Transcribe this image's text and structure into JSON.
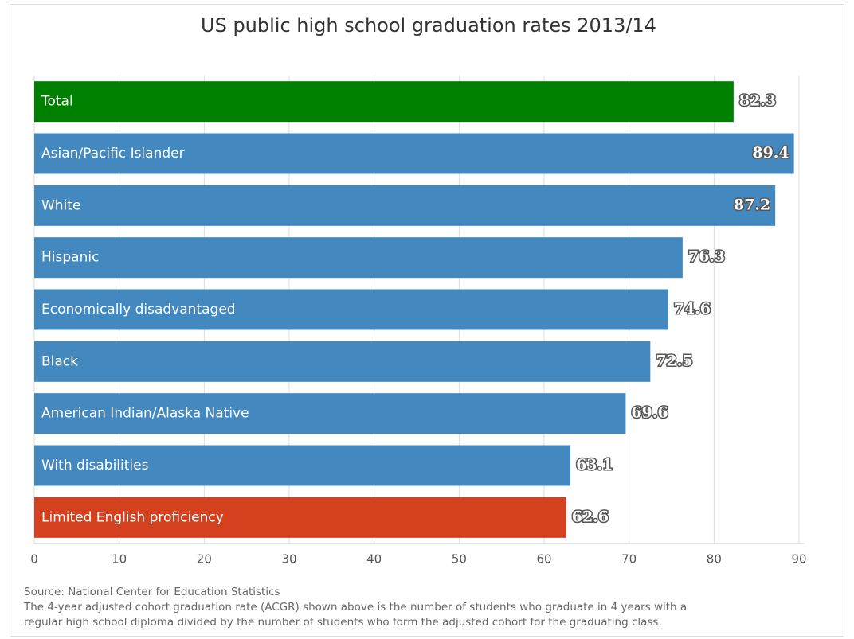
{
  "chart_data": {
    "type": "bar",
    "orientation": "horizontal",
    "title": "US public high school graduation rates 2013/14",
    "categories": [
      "Total",
      "Asian/Pacific Islander",
      "White",
      "Hispanic",
      "Economically disadvantaged",
      "Black",
      "American Indian/Alaska Native",
      "With disabilities",
      "Limited English proficiency"
    ],
    "values": [
      82.3,
      89.4,
      87.2,
      76.3,
      74.6,
      72.5,
      69.6,
      63.1,
      62.6
    ],
    "colors": [
      "#008000",
      "#4389bf",
      "#4389bf",
      "#4389bf",
      "#4389bf",
      "#4389bf",
      "#4389bf",
      "#4389bf",
      "#d5401f"
    ],
    "xlim": [
      0,
      90
    ],
    "xticks": [
      0,
      10,
      20,
      30,
      40,
      50,
      60,
      70,
      80,
      90
    ],
    "grid": true,
    "source": "Source: National Center for Education Statistics",
    "notes": [
      "The 4-year adjusted cohort graduation rate (ACGR) shown above is the number of students who graduate in 4 years with a",
      "regular high school diploma divided by the number of students who form the adjusted cohort for the graduating class."
    ]
  }
}
